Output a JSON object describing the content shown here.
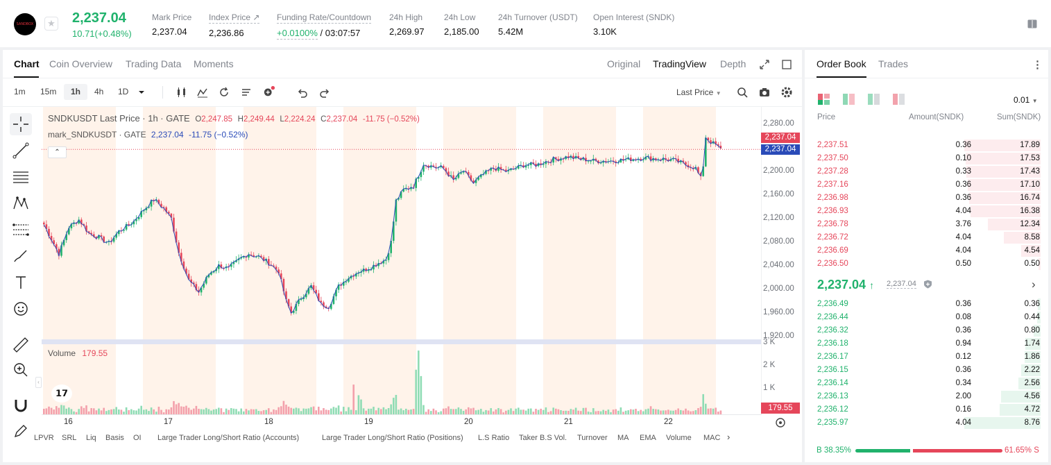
{
  "header": {
    "logo_text": "SANDBOX",
    "last_price": "2,237.04",
    "change": "10.71(+0.48%)",
    "stats": [
      {
        "label": "Mark Price",
        "value": "2,237.04"
      },
      {
        "label": "Index Price ↗",
        "value": "2,236.86"
      },
      {
        "label": "Funding Rate/Countdown",
        "value_green": "+0.0100%",
        "value_rest": " / 03:07:57"
      },
      {
        "label": "24h High",
        "value": "2,269.97"
      },
      {
        "label": "24h Low",
        "value": "2,185.00"
      },
      {
        "label": "24h Turnover (USDT)",
        "value": "5.42M"
      },
      {
        "label": "Open Interest (SNDK)",
        "value": "3.10K"
      }
    ]
  },
  "chart_panel": {
    "tabs": [
      "Chart",
      "Coin Overview",
      "Trading Data",
      "Moments"
    ],
    "view_tabs": [
      "Original",
      "TradingView",
      "Depth"
    ],
    "timeframes": [
      "1m",
      "15m",
      "1h",
      "4h",
      "1D"
    ],
    "active_timeframe": "1h",
    "price_type": "Last Price",
    "legend_title": "SNDKUSDT Last Price · 1h · GATE",
    "legend_o": "O",
    "legend_o_val": "2,247.85",
    "legend_h": "H",
    "legend_h_val": "2,249.44",
    "legend_l": "L",
    "legend_l_val": "2,224.24",
    "legend_c": "C",
    "legend_c_val": "2,237.04",
    "legend_chg": "-11.75 (−0.52%)",
    "mark_label": "mark_SNDKUSDT · GATE",
    "mark_value": "2,237.04",
    "mark_chg": "-11.75 (−0.52%)",
    "price_axis": [
      "2,280.00",
      "2,240.00",
      "2,200.00",
      "2,160.00",
      "2,120.00",
      "2,080.00",
      "2,040.00",
      "2,000.00",
      "1,960.00",
      "1,920.00"
    ],
    "tag_last": "2,237.04",
    "tag_mark": "2,237.04",
    "volume_label": "Volume",
    "volume_value": "179.55",
    "volume_axis": [
      "3 K",
      "2 K",
      "1 K"
    ],
    "volume_tag": "179.55",
    "date_axis": [
      "16",
      "17",
      "18",
      "19",
      "20",
      "21",
      "22"
    ],
    "indicators": [
      "LPVR",
      "SRL",
      "Liq",
      "Basis",
      "OI",
      "Large Trader Long/Short Ratio (Accounts)",
      "Large Trader Long/Short Ratio (Positions)",
      "L.S Ratio",
      "Taker B.S Vol.",
      "Turnover",
      "MA",
      "EMA",
      "Volume",
      "MACD"
    ]
  },
  "chart_data": {
    "type": "candlestick",
    "title": "SNDKUSDT Last Price · 1h · GATE",
    "xlabel": "",
    "ylabel": "",
    "ylim": [
      1920,
      2280
    ],
    "x_ticks": [
      "16",
      "17",
      "18",
      "19",
      "20",
      "21",
      "22"
    ],
    "legend": "top-left",
    "up_color": "#20b26c",
    "down_color": "#e5465a",
    "mark_price_color": "#2a4bb8",
    "anchors": [
      [
        0,
        2110
      ],
      [
        3,
        2085
      ],
      [
        6,
        2060
      ],
      [
        10,
        2105
      ],
      [
        14,
        2118
      ],
      [
        18,
        2095
      ],
      [
        22,
        2088
      ],
      [
        26,
        2078
      ],
      [
        30,
        2098
      ],
      [
        36,
        2115
      ],
      [
        40,
        2135
      ],
      [
        44,
        2152
      ],
      [
        48,
        2138
      ],
      [
        51,
        2120
      ],
      [
        54,
        2062
      ],
      [
        58,
        2015
      ],
      [
        62,
        1995
      ],
      [
        66,
        2025
      ],
      [
        70,
        2040
      ],
      [
        74,
        2035
      ],
      [
        78,
        2050
      ],
      [
        82,
        2060
      ],
      [
        86,
        2055
      ],
      [
        90,
        2045
      ],
      [
        94,
        2030
      ],
      [
        97,
        1980
      ],
      [
        99,
        1960
      ],
      [
        103,
        1985
      ],
      [
        107,
        2005
      ],
      [
        111,
        1975
      ],
      [
        114,
        1970
      ],
      [
        118,
        2005
      ],
      [
        122,
        2020
      ],
      [
        126,
        2030
      ],
      [
        130,
        2035
      ],
      [
        134,
        2045
      ],
      [
        137,
        2050
      ],
      [
        139,
        2080
      ],
      [
        141,
        2150
      ],
      [
        144,
        2168
      ],
      [
        148,
        2175
      ],
      [
        152,
        2212
      ],
      [
        156,
        2208
      ],
      [
        160,
        2205
      ],
      [
        164,
        2185
      ],
      [
        168,
        2200
      ],
      [
        172,
        2180
      ],
      [
        176,
        2195
      ],
      [
        180,
        2205
      ],
      [
        186,
        2200
      ],
      [
        192,
        2210
      ],
      [
        198,
        2212
      ],
      [
        204,
        2220
      ],
      [
        210,
        2225
      ],
      [
        216,
        2220
      ],
      [
        222,
        2217
      ],
      [
        228,
        2218
      ],
      [
        234,
        2220
      ],
      [
        240,
        2223
      ],
      [
        246,
        2221
      ],
      [
        252,
        2219
      ],
      [
        258,
        2210
      ],
      [
        261,
        2205
      ],
      [
        263,
        2188
      ],
      [
        264,
        2210
      ],
      [
        265,
        2258
      ],
      [
        267,
        2250
      ],
      [
        269,
        2245
      ],
      [
        271,
        2237
      ]
    ],
    "volume_ylim": [
      0,
      3200
    ],
    "volume_last": 179.55
  },
  "orderbook": {
    "tabs": [
      "Order Book",
      "Trades"
    ],
    "precision": "0.01",
    "columns": [
      "Price",
      "Amount(SNDK)",
      "Sum(SNDK)"
    ],
    "asks": [
      {
        "price": "2,237.51",
        "amount": "0.36",
        "sum": "17.89",
        "depth": 1.0
      },
      {
        "price": "2,237.50",
        "amount": "0.10",
        "sum": "17.53",
        "depth": 0.98
      },
      {
        "price": "2,237.28",
        "amount": "0.33",
        "sum": "17.43",
        "depth": 0.974
      },
      {
        "price": "2,237.16",
        "amount": "0.36",
        "sum": "17.10",
        "depth": 0.956
      },
      {
        "price": "2,236.98",
        "amount": "0.36",
        "sum": "16.74",
        "depth": 0.936
      },
      {
        "price": "2,236.93",
        "amount": "4.04",
        "sum": "16.38",
        "depth": 0.916
      },
      {
        "price": "2,236.78",
        "amount": "3.76",
        "sum": "12.34",
        "depth": 0.69
      },
      {
        "price": "2,236.72",
        "amount": "4.04",
        "sum": "8.58",
        "depth": 0.48
      },
      {
        "price": "2,236.69",
        "amount": "4.04",
        "sum": "4.54",
        "depth": 0.254
      },
      {
        "price": "2,236.50",
        "amount": "0.50",
        "sum": "0.50",
        "depth": 0.028
      }
    ],
    "mid_price": "2,237.04",
    "mid_mark": "2,237.04",
    "bids": [
      {
        "price": "2,236.49",
        "amount": "0.36",
        "sum": "0.36",
        "depth": 0.041
      },
      {
        "price": "2,236.44",
        "amount": "0.08",
        "sum": "0.44",
        "depth": 0.05
      },
      {
        "price": "2,236.32",
        "amount": "0.36",
        "sum": "0.80",
        "depth": 0.091
      },
      {
        "price": "2,236.18",
        "amount": "0.94",
        "sum": "1.74",
        "depth": 0.199
      },
      {
        "price": "2,236.17",
        "amount": "0.12",
        "sum": "1.86",
        "depth": 0.212
      },
      {
        "price": "2,236.15",
        "amount": "0.36",
        "sum": "2.22",
        "depth": 0.253
      },
      {
        "price": "2,236.14",
        "amount": "0.34",
        "sum": "2.56",
        "depth": 0.292
      },
      {
        "price": "2,236.13",
        "amount": "2.00",
        "sum": "4.56",
        "depth": 0.52
      },
      {
        "price": "2,236.12",
        "amount": "0.16",
        "sum": "4.72",
        "depth": 0.539
      },
      {
        "price": "2,235.97",
        "amount": "4.04",
        "sum": "8.76",
        "depth": 1.0
      }
    ],
    "buy_ratio": "B 38.35%",
    "sell_ratio": "61.65% S",
    "buy_fraction": 0.3835
  },
  "colors": {
    "up": "#20b26c",
    "down": "#e5465a",
    "mark_tag": "#2a4bb8",
    "session_shade": "#fff3ea"
  }
}
